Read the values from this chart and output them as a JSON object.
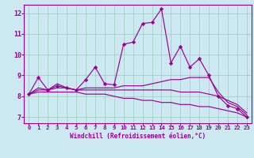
{
  "xlabel": "Windchill (Refroidissement éolien,°C)",
  "bg_color": "#cce8f0",
  "line_color": "#990099",
  "grid_color": "#99ccbb",
  "xlim": [
    -0.5,
    23.5
  ],
  "ylim": [
    6.7,
    12.4
  ],
  "yticks": [
    7,
    8,
    9,
    10,
    11,
    12
  ],
  "xticks": [
    0,
    1,
    2,
    3,
    4,
    5,
    6,
    7,
    8,
    9,
    10,
    11,
    12,
    13,
    14,
    15,
    16,
    17,
    18,
    19,
    20,
    21,
    22,
    23
  ],
  "curves": [
    [
      8.1,
      8.9,
      8.3,
      8.5,
      8.4,
      8.3,
      8.8,
      9.4,
      8.6,
      8.55,
      10.5,
      10.6,
      11.5,
      11.55,
      12.2,
      9.6,
      10.4,
      9.4,
      9.8,
      9.0,
      8.0,
      7.55,
      7.4,
      7.0
    ],
    [
      8.1,
      8.4,
      8.3,
      8.6,
      8.4,
      8.3,
      8.4,
      8.4,
      8.4,
      8.4,
      8.5,
      8.5,
      8.5,
      8.6,
      8.7,
      8.8,
      8.8,
      8.9,
      8.9,
      8.9,
      8.2,
      7.7,
      7.5,
      7.1
    ],
    [
      8.1,
      8.3,
      8.3,
      8.4,
      8.4,
      8.3,
      8.3,
      8.3,
      8.3,
      8.3,
      8.3,
      8.3,
      8.3,
      8.3,
      8.3,
      8.3,
      8.2,
      8.2,
      8.2,
      8.1,
      8.0,
      7.8,
      7.6,
      7.2
    ],
    [
      8.1,
      8.2,
      8.2,
      8.2,
      8.2,
      8.2,
      8.1,
      8.1,
      8.1,
      8.0,
      7.9,
      7.9,
      7.8,
      7.8,
      7.7,
      7.7,
      7.6,
      7.6,
      7.5,
      7.5,
      7.4,
      7.3,
      7.2,
      7.0
    ]
  ],
  "marker_curve": 0,
  "marker": "D",
  "markersize": 2.2,
  "linewidth": 0.85,
  "xlabel_fontsize": 5.5,
  "tick_fontsize": 5.2,
  "ytick_fontsize": 6.0
}
